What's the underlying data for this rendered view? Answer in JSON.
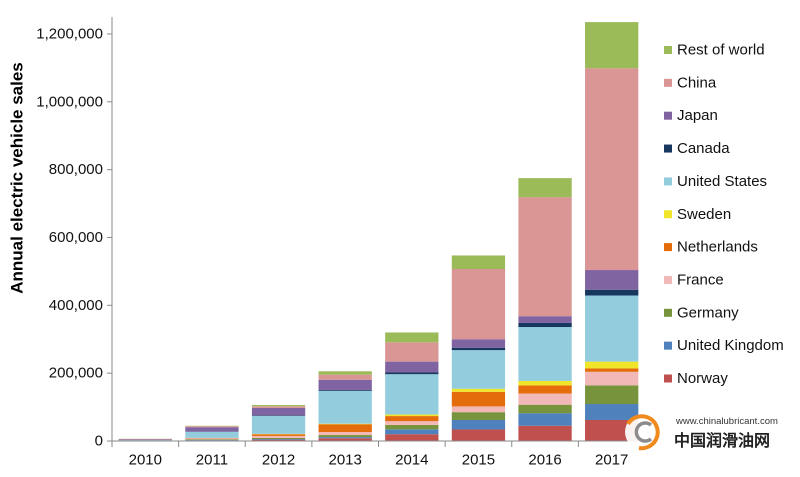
{
  "chart_data": {
    "type": "bar",
    "stacked": true,
    "ylabel": "Annual electric vehicle sales",
    "categories": [
      "2010",
      "2011",
      "2012",
      "2013",
      "2014",
      "2015",
      "2016",
      "2017"
    ],
    "ylim": [
      0,
      1250000
    ],
    "yticks": [
      0,
      200000,
      400000,
      600000,
      800000,
      1000000,
      1200000
    ],
    "ytick_labels": [
      "0",
      "200,000",
      "400,000",
      "600,000",
      "800,000",
      "1,000,000",
      "1,200,000"
    ],
    "grid": false,
    "legend": "right",
    "series": [
      {
        "name": "Norway",
        "color": "#c0504d",
        "values": [
          400,
          2000,
          4000,
          8000,
          20000,
          34000,
          45000,
          62000
        ]
      },
      {
        "name": "United Kingdom",
        "color": "#4f81bd",
        "values": [
          200,
          1000,
          2000,
          3500,
          14500,
          28000,
          37000,
          47000
        ]
      },
      {
        "name": "Germany",
        "color": "#77933c",
        "values": [
          500,
          2000,
          3000,
          6000,
          13000,
          23000,
          25000,
          55000
        ]
      },
      {
        "name": "France",
        "color": "#f2b8b7",
        "values": [
          200,
          3000,
          6000,
          9000,
          11000,
          17000,
          33000,
          40000
        ]
      },
      {
        "name": "Netherlands",
        "color": "#e46c0a",
        "values": [
          100,
          1000,
          5000,
          23000,
          15000,
          43000,
          24000,
          10000
        ]
      },
      {
        "name": "Sweden",
        "color": "#f0e52a",
        "values": [
          0,
          300,
          1000,
          1500,
          4500,
          9000,
          13000,
          20000
        ]
      },
      {
        "name": "United States",
        "color": "#93cddd",
        "values": [
          1200,
          18000,
          53000,
          97000,
          119000,
          114000,
          159000,
          195000
        ]
      },
      {
        "name": "Canada",
        "color": "#17375e",
        "values": [
          0,
          500,
          1500,
          2500,
          5000,
          7000,
          12000,
          17000
        ]
      },
      {
        "name": "Japan",
        "color": "#8064a2",
        "values": [
          2300,
          13000,
          22000,
          30000,
          32000,
          25000,
          20000,
          58000
        ]
      },
      {
        "name": "China",
        "color": "#d99694",
        "values": [
          1000,
          3000,
          5000,
          15000,
          57000,
          207000,
          351000,
          595000
        ]
      },
      {
        "name": "Rest of world",
        "color": "#9bbb59",
        "values": [
          600,
          1000,
          3500,
          10000,
          29000,
          40000,
          56000,
          136000
        ]
      }
    ]
  },
  "watermark": {
    "url": "www.chinalubricant.com",
    "name": "中国润滑油网"
  }
}
